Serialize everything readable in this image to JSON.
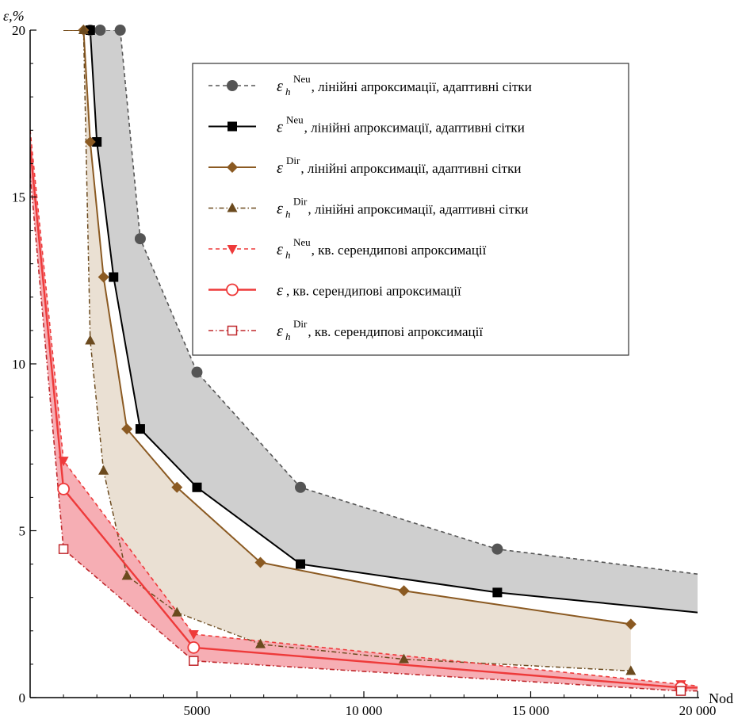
{
  "chart_data": {
    "type": "line",
    "xlabel": "Nod",
    "ylabel": "ε,%",
    "xlim": [
      0,
      20000
    ],
    "ylim": [
      0,
      20
    ],
    "x_ticks": [
      5000,
      10000,
      15000,
      20000
    ],
    "x_tick_labels": [
      "5000",
      "10 000",
      "15 000",
      "20 000"
    ],
    "y_ticks": [
      0,
      5,
      10,
      15,
      20
    ],
    "y_tick_labels": [
      "0",
      "5",
      "10",
      "15",
      "20"
    ],
    "grid": false,
    "legend_position": "top-right",
    "colors": {
      "gray_band": "#cfcfcf",
      "beige_band": "#eae0d3",
      "pink_band": "#f6aeb4",
      "dark_gray": "#555555",
      "black": "#000000",
      "brown": "#8b5a22",
      "dark_brown": "#6b4a1e",
      "red": "#ee3a3a",
      "dark_red": "#c0282c"
    },
    "series": [
      {
        "id": "s1",
        "sym": "ε",
        "sub": "h",
        "sup": "Neu",
        "desc": ", лінійні апроксимації, адаптивні сітки",
        "marker": "circle",
        "line": "dashed",
        "x": [
          1000,
          1800,
          2100,
          2700,
          3300,
          5000,
          8100,
          14000,
          20000
        ],
        "y": [
          20,
          20,
          20,
          20,
          13.75,
          9.75,
          6.3,
          4.45,
          3.7
        ]
      },
      {
        "id": "s2",
        "sym": "ε",
        "sub": "",
        "sup": "Neu",
        "desc": ", лінійні апроксимації, адаптивні сітки",
        "marker": "square",
        "line": "solid",
        "x": [
          1000,
          1800,
          2000,
          2500,
          3300,
          5000,
          8100,
          14000,
          20000
        ],
        "y": [
          20,
          20,
          16.65,
          12.6,
          8.05,
          6.3,
          4.0,
          3.15,
          2.55
        ]
      },
      {
        "id": "s3",
        "sym": "ε",
        "sub": "",
        "sup": "Dir",
        "desc": ", лінійні апроксимації, адаптивні сітки",
        "marker": "diamond",
        "line": "solid",
        "x": [
          1000,
          1600,
          1800,
          2200,
          2900,
          4400,
          6900,
          11200,
          18000
        ],
        "y": [
          20,
          20,
          16.65,
          12.6,
          8.05,
          6.3,
          4.05,
          3.2,
          2.2
        ]
      },
      {
        "id": "s4",
        "sym": "ε",
        "sub": "h",
        "sup": "Dir",
        "desc": ", лінійні апроксимації, адаптивні сітки",
        "marker": "triangle",
        "line": "dashdot",
        "x": [
          1000,
          1600,
          1800,
          2200,
          2900,
          4400,
          6900,
          11200,
          18000
        ],
        "y": [
          20,
          20,
          10.7,
          6.8,
          3.65,
          2.55,
          1.6,
          1.15,
          0.8
        ]
      },
      {
        "id": "s5",
        "sym": "ε",
        "sub": "h",
        "sup": "Neu",
        "desc": ", кв. серендипові апроксимації",
        "marker": "triangle-down",
        "line": "dashed",
        "x": [
          0,
          1000,
          4900,
          19500,
          20000
        ],
        "y": [
          17,
          7.1,
          1.9,
          0.4,
          0.35
        ]
      },
      {
        "id": "s6",
        "sym": "ε",
        "sub": "",
        "sup": "",
        "desc": ", кв. серендипові апроксимації",
        "marker": "circle-open",
        "line": "solid",
        "x": [
          0,
          1000,
          4900,
          19500,
          20000
        ],
        "y": [
          16.5,
          6.25,
          1.5,
          0.3,
          0.3
        ]
      },
      {
        "id": "s7",
        "sym": "ε",
        "sub": "h",
        "sup": "Dir",
        "desc": ", кв. серендипові апроксимації",
        "marker": "square-open",
        "line": "dashdot",
        "x": [
          0,
          1000,
          4900,
          19500,
          20000
        ],
        "y": [
          15.7,
          4.45,
          1.1,
          0.2,
          0.2
        ]
      }
    ]
  }
}
